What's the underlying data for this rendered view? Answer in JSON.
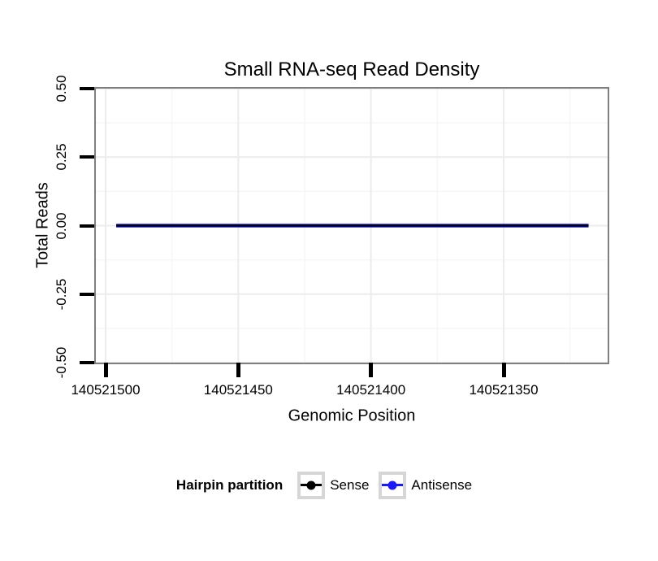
{
  "title": "Small RNA-seq Read Density",
  "chart_data": {
    "type": "line",
    "title": "Small RNA-seq Read Density",
    "xlabel": "Genomic Position",
    "ylabel": "Total Reads",
    "x_axis": {
      "reversed": true,
      "ticks": [
        140521500,
        140521450,
        140521400,
        140521350
      ],
      "tick_labels": [
        "140521500",
        "140521450",
        "140521400",
        "140521350"
      ],
      "minor_ticks": [
        140521475,
        140521425,
        140521375,
        140521325
      ],
      "range": [
        140521504,
        140521311
      ]
    },
    "y_axis": {
      "ticks": [
        0.5,
        0.25,
        0.0,
        -0.25,
        -0.5
      ],
      "tick_labels": [
        "0.50",
        "0.25",
        "0.00",
        "-0.25",
        "-0.50"
      ],
      "minor_ticks": [
        0.375,
        0.125,
        -0.125,
        -0.375
      ],
      "range": [
        -0.5,
        0.5
      ]
    },
    "grid": true,
    "legend_position": "bottom",
    "series": [
      {
        "name": "Sense",
        "color": "#000000",
        "x": [
          140521496,
          140521318
        ],
        "y": [
          0,
          0
        ]
      },
      {
        "name": "Antisense",
        "color": "#1a1aff",
        "x": [
          140521496,
          140521318
        ],
        "y": [
          0,
          0
        ]
      }
    ]
  },
  "legend": {
    "title": "Hairpin partition",
    "items": [
      {
        "label": "Sense",
        "color": "#000000"
      },
      {
        "label": "Antisense",
        "color": "#1a1aff"
      }
    ]
  },
  "colors": {
    "background": "#ffffff",
    "panel_border": "#7f7f7f",
    "tick": "#000000",
    "grid_major": "#ececec",
    "grid_minor": "#f6f6f6"
  }
}
